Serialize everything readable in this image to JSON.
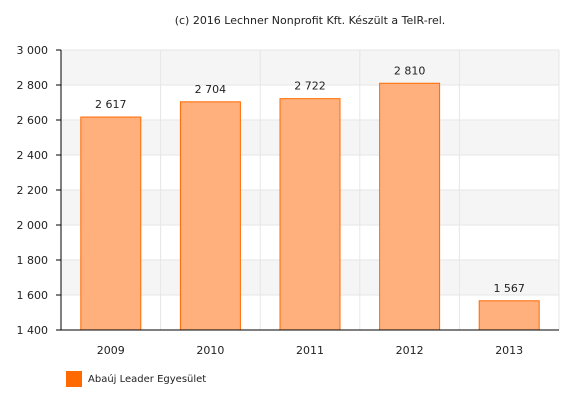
{
  "chart_data": {
    "type": "bar",
    "title": "(c) 2016 Lechner Nonprofit Kft. Készült a TeIR-rel.",
    "categories": [
      "2009",
      "2010",
      "2011",
      "2012",
      "2013"
    ],
    "series": [
      {
        "name": "Abaúj Leader Egyesület",
        "values": [
          2617,
          2704,
          2722,
          2810,
          1567
        ]
      }
    ],
    "data_labels": [
      "2 617",
      "2 704",
      "2 722",
      "2 810",
      "1 567"
    ],
    "y_ticks": [
      1400,
      1600,
      1800,
      2000,
      2200,
      2400,
      2600,
      2800,
      3000
    ],
    "y_tick_labels": [
      "1 400",
      "1 600",
      "1 800",
      "2 000",
      "2 200",
      "2 400",
      "2 600",
      "2 800",
      "3 000"
    ],
    "ylim": [
      1400,
      3000
    ],
    "xlabel": "",
    "ylabel": "",
    "grid": true,
    "legend_position": "bottom-left",
    "colors": {
      "bar_fill": "#ffb07c",
      "bar_stroke": "#ff6a00",
      "legend_swatch": "#ff6a00",
      "band": "#f5f5f5",
      "grid": "#e6e6e6",
      "axis": "#000000"
    }
  }
}
